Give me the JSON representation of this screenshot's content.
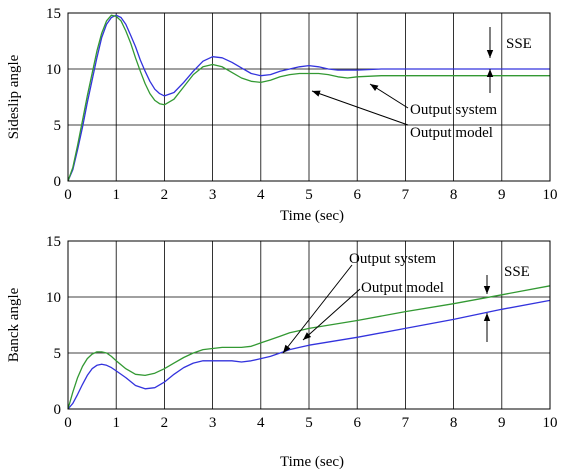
{
  "chart_data": [
    {
      "type": "line",
      "xlabel": "Time (sec)",
      "ylabel": "Sideslip angle",
      "xlim": [
        0,
        10
      ],
      "ylim": [
        0,
        15
      ],
      "xticks": [
        "0",
        "1",
        "2",
        "3",
        "4",
        "5",
        "6",
        "7",
        "8",
        "9",
        "10"
      ],
      "yticks": [
        "0",
        "5",
        "10",
        "15"
      ],
      "grid": true,
      "series": [
        {
          "color": "#3333dd",
          "x": [
            0,
            0.1,
            0.2,
            0.3,
            0.4,
            0.5,
            0.6,
            0.7,
            0.8,
            0.9,
            1.0,
            1.1,
            1.2,
            1.3,
            1.4,
            1.5,
            1.6,
            1.7,
            1.8,
            1.9,
            2.0,
            2.2,
            2.4,
            2.6,
            2.8,
            3.0,
            3.2,
            3.4,
            3.6,
            3.8,
            4.0,
            4.2,
            4.4,
            4.6,
            4.8,
            5.0,
            5.2,
            5.4,
            5.6,
            5.8,
            6.0,
            6.5,
            7.0,
            8.0,
            9.0,
            10.0
          ],
          "y": [
            0,
            1.0,
            2.8,
            4.8,
            7.0,
            9.0,
            11.0,
            12.8,
            14.0,
            14.6,
            14.8,
            14.6,
            14.0,
            13.0,
            12.0,
            10.8,
            9.8,
            8.9,
            8.2,
            7.8,
            7.6,
            7.9,
            8.8,
            9.8,
            10.7,
            11.1,
            11.0,
            10.6,
            10.1,
            9.6,
            9.4,
            9.5,
            9.8,
            10.0,
            10.2,
            10.3,
            10.2,
            10.0,
            9.9,
            9.9,
            9.9,
            10.0,
            10.0,
            10.0,
            10.0,
            10.0
          ]
        },
        {
          "color": "#339933",
          "x": [
            0,
            0.1,
            0.2,
            0.3,
            0.4,
            0.5,
            0.6,
            0.7,
            0.8,
            0.9,
            1.0,
            1.1,
            1.2,
            1.3,
            1.4,
            1.5,
            1.6,
            1.7,
            1.8,
            1.9,
            2.0,
            2.2,
            2.4,
            2.6,
            2.8,
            3.0,
            3.2,
            3.4,
            3.6,
            3.8,
            4.0,
            4.2,
            4.4,
            4.6,
            4.8,
            5.0,
            5.2,
            5.4,
            5.6,
            5.8,
            6.0,
            6.5,
            7.0,
            8.0,
            9.0,
            10.0
          ],
          "y": [
            0,
            1.2,
            3.2,
            5.4,
            7.6,
            9.6,
            11.6,
            13.2,
            14.3,
            14.8,
            14.7,
            14.3,
            13.4,
            12.3,
            11.0,
            9.8,
            8.7,
            7.8,
            7.2,
            6.9,
            6.8,
            7.3,
            8.4,
            9.5,
            10.2,
            10.4,
            10.2,
            9.7,
            9.2,
            8.9,
            8.8,
            9.0,
            9.3,
            9.5,
            9.6,
            9.6,
            9.6,
            9.5,
            9.3,
            9.2,
            9.3,
            9.4,
            9.4,
            9.4,
            9.4,
            9.4
          ]
        }
      ],
      "annotations": {
        "sse_label": "SSE",
        "label_system": "Output system",
        "label_model": "Output model"
      }
    },
    {
      "type": "line",
      "xlabel": "Time (sec)",
      "ylabel": "Banck angle",
      "xlim": [
        0,
        10
      ],
      "ylim": [
        0,
        15
      ],
      "xticks": [
        "0",
        "1",
        "2",
        "3",
        "4",
        "5",
        "6",
        "7",
        "8",
        "9",
        "10"
      ],
      "yticks": [
        "0",
        "5",
        "10",
        "15"
      ],
      "grid": true,
      "series": [
        {
          "color": "#3333dd",
          "x": [
            0,
            0.1,
            0.2,
            0.3,
            0.4,
            0.5,
            0.6,
            0.7,
            0.8,
            0.9,
            1.0,
            1.2,
            1.4,
            1.6,
            1.8,
            2.0,
            2.2,
            2.4,
            2.6,
            2.8,
            3.0,
            3.2,
            3.4,
            3.6,
            3.8,
            4.0,
            4.2,
            4.4,
            4.6,
            4.8,
            5.0,
            6.0,
            7.0,
            8.0,
            9.0,
            10.0
          ],
          "y": [
            0,
            0.5,
            1.3,
            2.2,
            3.0,
            3.6,
            3.9,
            4.0,
            3.9,
            3.7,
            3.4,
            2.8,
            2.1,
            1.8,
            1.9,
            2.4,
            3.1,
            3.7,
            4.1,
            4.3,
            4.3,
            4.3,
            4.3,
            4.2,
            4.3,
            4.5,
            4.7,
            5.0,
            5.3,
            5.5,
            5.7,
            6.4,
            7.2,
            8.0,
            8.9,
            9.7
          ]
        },
        {
          "color": "#339933",
          "x": [
            0,
            0.1,
            0.2,
            0.3,
            0.4,
            0.5,
            0.6,
            0.7,
            0.8,
            0.9,
            1.0,
            1.2,
            1.4,
            1.6,
            1.8,
            2.0,
            2.2,
            2.4,
            2.6,
            2.8,
            3.0,
            3.2,
            3.4,
            3.6,
            3.8,
            4.0,
            4.2,
            4.4,
            4.6,
            4.8,
            5.0,
            6.0,
            7.0,
            8.0,
            9.0,
            10.0
          ],
          "y": [
            0,
            1.5,
            2.8,
            3.8,
            4.5,
            4.9,
            5.1,
            5.1,
            5.0,
            4.7,
            4.3,
            3.6,
            3.1,
            3.0,
            3.2,
            3.6,
            4.1,
            4.6,
            5.0,
            5.3,
            5.4,
            5.5,
            5.5,
            5.5,
            5.6,
            5.9,
            6.2,
            6.5,
            6.8,
            7.0,
            7.2,
            7.9,
            8.7,
            9.4,
            10.2,
            11.0
          ]
        }
      ],
      "annotations": {
        "sse_label": "SSE",
        "label_system": "Output system",
        "label_model": "Output model"
      }
    }
  ]
}
